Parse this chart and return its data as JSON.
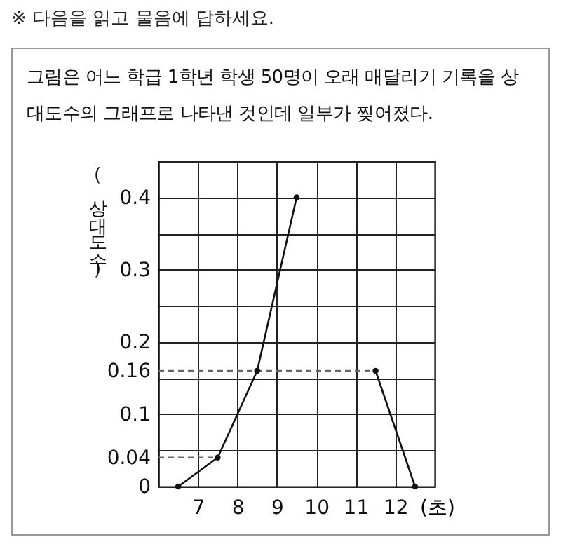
{
  "chart_data": {
    "type": "line",
    "title": "※ 다음을 읽고 물음에 답하세요.",
    "subtitle": "그림은 어느 학급 1학년 학생 50명이 오래 매달리기 기록을 상대도수의 그래프로 나타낸 것인데 일부가 찢어졌다.",
    "xlabel": "(초)",
    "ylabel": "(상대도수)",
    "x": [
      6.5,
      7.5,
      8.5,
      9.5,
      10.5,
      11.5,
      12.5
    ],
    "series": [
      {
        "color": "#111111",
        "values": [
          0,
          0.04,
          0.16,
          0.4,
          null,
          0.16,
          0
        ]
      }
    ],
    "xlim": [
      6,
      13
    ],
    "xticks": [
      7,
      8,
      9,
      10,
      11,
      12
    ],
    "ylim": [
      0,
      0.45
    ],
    "yticks": [
      0,
      0.04,
      {
        "value": 0.05,
        "label": null
      },
      0.1,
      {
        "value": 0.15,
        "label": null
      },
      0.16,
      0.2,
      {
        "value": 0.25,
        "label": null
      },
      0.3,
      {
        "value": 0.35,
        "label": null
      },
      0.4,
      {
        "value": 0.45,
        "label": null
      }
    ],
    "ref_lines": [
      {
        "axis": "y",
        "value": 0.04,
        "color": "#666666",
        "line_style": "dashed"
      },
      {
        "axis": "y",
        "value": 0.16,
        "color": "#666666",
        "line_style": "dashed"
      }
    ],
    "grid": true,
    "marker": "circle",
    "line_style": "solid"
  }
}
